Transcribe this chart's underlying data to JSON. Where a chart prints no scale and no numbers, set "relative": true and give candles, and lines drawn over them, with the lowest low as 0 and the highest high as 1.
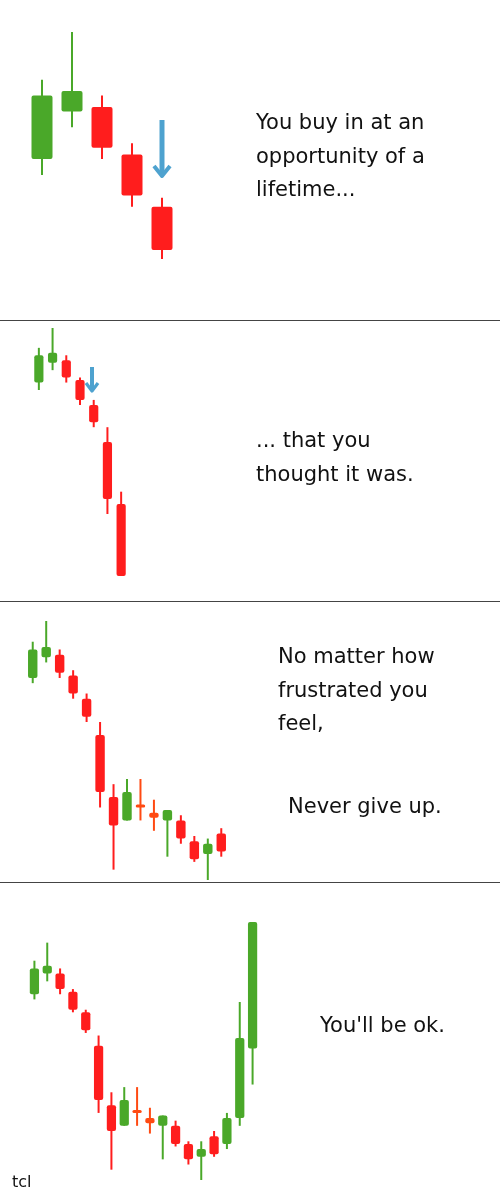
{
  "chart_data": [
    {
      "type": "candlestick",
      "relative": true,
      "categories": [
        null,
        null,
        null,
        null,
        null
      ],
      "ohlc": [
        [
          0.44,
          0.79,
          0.37,
          0.72
        ],
        [
          0.65,
          1,
          0.58,
          0.74
        ],
        [
          0.67,
          0.72,
          0.44,
          0.49
        ],
        [
          0.46,
          0.51,
          0.23,
          0.28
        ],
        [
          0.23,
          0.27,
          0,
          0.04
        ]
      ],
      "colors": [
        "#4aa829",
        "#4aa829",
        "#ff1d1d",
        "#ff1d1d",
        "#ff1d1d"
      ],
      "annotations": [
        "You buy in at an opportunity of a lifetime..."
      ]
    },
    {
      "type": "candlestick",
      "relative": true,
      "categories": [
        null,
        null,
        null,
        null,
        null,
        null,
        null
      ],
      "ohlc": [
        [
          0.78,
          0.92,
          0.75,
          0.89
        ],
        [
          0.86,
          1,
          0.83,
          0.9
        ],
        [
          0.87,
          0.89,
          0.78,
          0.8
        ],
        [
          0.79,
          0.8,
          0.69,
          0.71
        ],
        [
          0.69,
          0.71,
          0.6,
          0.62
        ],
        [
          0.54,
          0.6,
          0.25,
          0.31
        ],
        [
          0.29,
          0.34,
          0,
          0
        ]
      ],
      "colors": [
        "#4aa829",
        "#4aa829",
        "#ff1d1d",
        "#ff1d1d",
        "#ff1d1d",
        "#ff1d1d",
        "#ff1d1d"
      ],
      "annotations": [
        "... that you thought it was."
      ]
    },
    {
      "type": "candlestick",
      "relative": true,
      "categories": [
        null,
        null,
        null,
        null,
        null,
        null,
        null,
        null,
        null,
        null,
        null,
        null,
        null,
        null,
        null
      ],
      "ohlc": [
        [
          0.78,
          0.92,
          0.76,
          0.89
        ],
        [
          0.86,
          1,
          0.84,
          0.9
        ],
        [
          0.87,
          0.89,
          0.78,
          0.8
        ],
        [
          0.79,
          0.81,
          0.7,
          0.72
        ],
        [
          0.7,
          0.72,
          0.61,
          0.63
        ],
        [
          0.56,
          0.61,
          0.28,
          0.34
        ],
        [
          0.32,
          0.37,
          0.04,
          0.21
        ],
        [
          0.23,
          0.39,
          0.23,
          0.34
        ],
        [
          0.29,
          0.39,
          0.23,
          0.28
        ],
        [
          0.26,
          0.31,
          0.19,
          0.24
        ],
        [
          0.23,
          0.27,
          0.09,
          0.27
        ],
        [
          0.23,
          0.25,
          0.14,
          0.16
        ],
        [
          0.15,
          0.17,
          0.07,
          0.08
        ],
        [
          0.1,
          0.16,
          0,
          0.14
        ],
        [
          0.18,
          0.2,
          0.09,
          0.11
        ]
      ],
      "colors": [
        "#4aa829",
        "#4aa829",
        "#ff1d1d",
        "#ff1d1d",
        "#ff1d1d",
        "#ff1d1d",
        "#ff1d1d",
        "#4aa829",
        "#ff4a12",
        "#ff4a12",
        "#4aa829",
        "#ff1d1d",
        "#ff1d1d",
        "#4aa829",
        "#ff1d1d"
      ],
      "annotations": [
        "No matter how frustrated you feel,",
        "Never give up."
      ]
    },
    {
      "type": "candlestick",
      "relative": true,
      "categories": [
        null,
        null,
        null,
        null,
        null,
        null,
        null,
        null,
        null,
        null,
        null,
        null,
        null,
        null,
        null,
        null,
        null,
        null
      ],
      "ohlc": [
        [
          0.72,
          0.85,
          0.7,
          0.82
        ],
        [
          0.8,
          0.92,
          0.77,
          0.83
        ],
        [
          0.8,
          0.82,
          0.72,
          0.74
        ],
        [
          0.73,
          0.74,
          0.65,
          0.66
        ],
        [
          0.65,
          0.66,
          0.57,
          0.58
        ],
        [
          0.52,
          0.56,
          0.26,
          0.31
        ],
        [
          0.29,
          0.34,
          0.04,
          0.19
        ],
        [
          0.21,
          0.36,
          0.21,
          0.31
        ],
        [
          0.27,
          0.36,
          0.21,
          0.26
        ],
        [
          0.24,
          0.28,
          0.18,
          0.22
        ],
        [
          0.21,
          0.25,
          0.08,
          0.25
        ],
        [
          0.21,
          0.23,
          0.13,
          0.14
        ],
        [
          0.14,
          0.15,
          0.06,
          0.08
        ],
        [
          0.09,
          0.15,
          0,
          0.12
        ],
        [
          0.17,
          0.19,
          0.09,
          0.1
        ],
        [
          0.14,
          0.26,
          0.12,
          0.24
        ],
        [
          0.24,
          0.69,
          0.21,
          0.55
        ],
        [
          0.51,
          1,
          0.37,
          1
        ]
      ],
      "colors": [
        "#4aa829",
        "#4aa829",
        "#ff1d1d",
        "#ff1d1d",
        "#ff1d1d",
        "#ff1d1d",
        "#ff1d1d",
        "#4aa829",
        "#ff4a12",
        "#ff4a12",
        "#4aa829",
        "#ff1d1d",
        "#ff1d1d",
        "#4aa829",
        "#ff1d1d",
        "#4aa829",
        "#4aa829",
        "#4aa829"
      ],
      "annotations": [
        "You'll be ok.",
        "tcl"
      ]
    }
  ]
}
